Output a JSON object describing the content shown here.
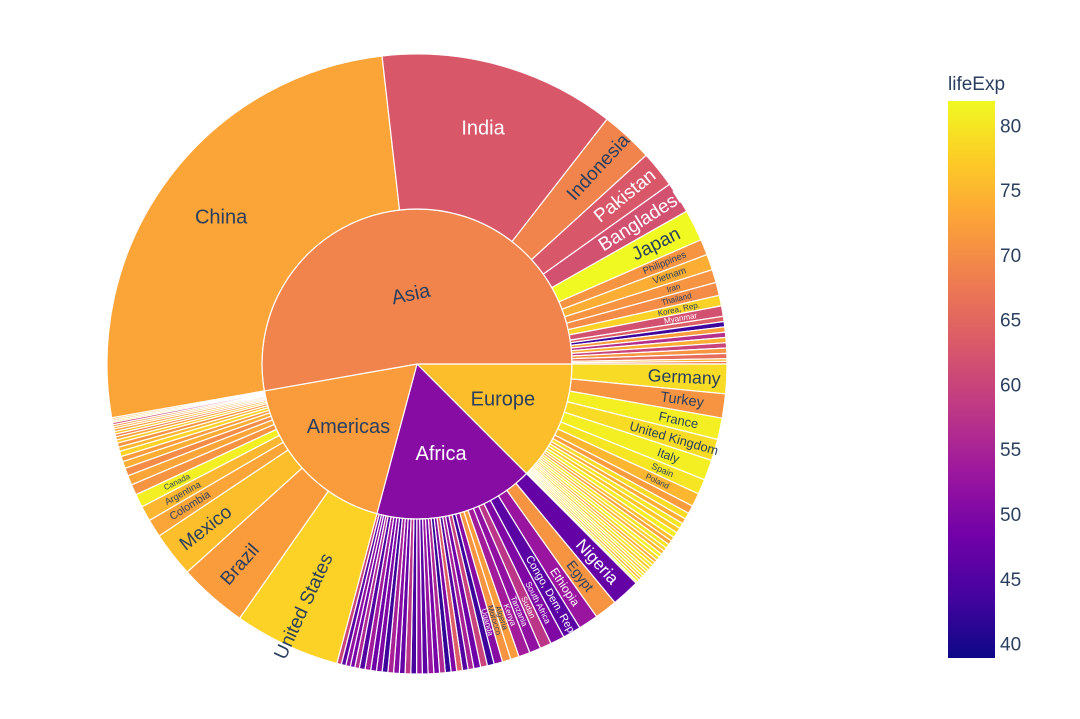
{
  "chart_data": {
    "type": "sunburst",
    "color_variable": "lifeExp",
    "colorscale": [
      "#0d0887",
      "#46039f",
      "#7201a8",
      "#9c179e",
      "#bd3786",
      "#d8576b",
      "#ed7953",
      "#fb9f3a",
      "#fdca26",
      "#f0f921"
    ],
    "color_range": [
      39,
      82
    ],
    "colorbar": {
      "title": "lifeExp",
      "ticks": [
        40,
        45,
        50,
        55,
        60,
        65,
        70,
        75,
        80
      ]
    },
    "inner": [
      {
        "name": "Asia",
        "weight": 190,
        "lifeExp": 69
      },
      {
        "name": "Africa",
        "weight": 60,
        "lifeExp": 51
      },
      {
        "name": "Europe",
        "weight": 45,
        "lifeExp": 76
      },
      {
        "name": "Americas",
        "weight": 65,
        "lifeExp": 72
      }
    ],
    "outer": [
      {
        "parent": "Asia",
        "name": "China",
        "weight": 95,
        "lifeExp": 73
      },
      {
        "parent": "Asia",
        "name": "India",
        "weight": 45,
        "lifeExp": 63
      },
      {
        "parent": "Asia",
        "name": "Indonesia",
        "weight": 10,
        "lifeExp": 69
      },
      {
        "parent": "Asia",
        "name": "Pakistan",
        "weight": 7,
        "lifeExp": 63
      },
      {
        "parent": "Asia",
        "name": "Bangladesh",
        "weight": 6,
        "lifeExp": 62
      },
      {
        "parent": "Asia",
        "name": "Japan",
        "weight": 6,
        "lifeExp": 82
      },
      {
        "parent": "Asia",
        "name": "Philippines",
        "weight": 3,
        "lifeExp": 71
      },
      {
        "parent": "Asia",
        "name": "Vietnam",
        "weight": 3,
        "lifeExp": 74
      },
      {
        "parent": "Asia",
        "name": "Iran",
        "weight": 2.5,
        "lifeExp": 71
      },
      {
        "parent": "Asia",
        "name": "Thailand",
        "weight": 2.5,
        "lifeExp": 70
      },
      {
        "parent": "Asia",
        "name": "Korea, Rep.",
        "weight": 2,
        "lifeExp": 78
      },
      {
        "parent": "Asia",
        "name": "Myanmar",
        "weight": 2,
        "lifeExp": 62
      },
      {
        "parent": "Asia",
        "name": "",
        "weight": 1,
        "lifeExp": 64
      },
      {
        "parent": "Asia",
        "name": "",
        "weight": 1,
        "lifeExp": 43
      },
      {
        "parent": "Asia",
        "name": "",
        "weight": 1,
        "lifeExp": 72
      },
      {
        "parent": "Asia",
        "name": "",
        "weight": 1,
        "lifeExp": 57
      },
      {
        "parent": "Asia",
        "name": "",
        "weight": 1,
        "lifeExp": 74
      },
      {
        "parent": "Asia",
        "name": "",
        "weight": 1,
        "lifeExp": 60
      },
      {
        "parent": "Asia",
        "name": "",
        "weight": 1,
        "lifeExp": 71
      },
      {
        "parent": "Asia",
        "name": "",
        "weight": 1,
        "lifeExp": 66
      },
      {
        "parent": "Asia",
        "name": "",
        "weight": 0.5,
        "lifeExp": 75
      },
      {
        "parent": "Asia",
        "name": "",
        "weight": 0.5,
        "lifeExp": 68
      },
      {
        "parent": "Africa",
        "name": "Nigeria",
        "weight": 5,
        "lifeExp": 47
      },
      {
        "parent": "Africa",
        "name": "Egypt",
        "weight": 4,
        "lifeExp": 71
      },
      {
        "parent": "Africa",
        "name": "Ethiopia",
        "weight": 3.5,
        "lifeExp": 53
      },
      {
        "parent": "Africa",
        "name": "Congo, Dem. Rep.",
        "weight": 3.2,
        "lifeExp": 46
      },
      {
        "parent": "Africa",
        "name": "South Africa",
        "weight": 2.5,
        "lifeExp": 50
      },
      {
        "parent": "Africa",
        "name": "Sudan",
        "weight": 2,
        "lifeExp": 58
      },
      {
        "parent": "Africa",
        "name": "Tanzania",
        "weight": 2,
        "lifeExp": 52
      },
      {
        "parent": "Africa",
        "name": "Kenya",
        "weight": 2,
        "lifeExp": 54
      },
      {
        "parent": "Africa",
        "name": "Algeria",
        "weight": 1.5,
        "lifeExp": 72
      },
      {
        "parent": "Africa",
        "name": "Morocco",
        "weight": 1.5,
        "lifeExp": 71
      },
      {
        "parent": "Africa",
        "name": "Uganda",
        "weight": 1.5,
        "lifeExp": 51
      },
      {
        "parent": "Africa",
        "name": "",
        "weight": 1.2,
        "lifeExp": 43
      },
      {
        "parent": "Africa",
        "name": "",
        "weight": 1.2,
        "lifeExp": 60
      },
      {
        "parent": "Africa",
        "name": "",
        "weight": 1.2,
        "lifeExp": 48
      },
      {
        "parent": "Africa",
        "name": "",
        "weight": 1,
        "lifeExp": 55
      },
      {
        "parent": "Africa",
        "name": "",
        "weight": 1,
        "lifeExp": 45
      },
      {
        "parent": "Africa",
        "name": "",
        "weight": 1,
        "lifeExp": 64
      },
      {
        "parent": "Africa",
        "name": "",
        "weight": 1,
        "lifeExp": 50
      },
      {
        "parent": "Africa",
        "name": "",
        "weight": 1,
        "lifeExp": 42
      },
      {
        "parent": "Africa",
        "name": "",
        "weight": 1,
        "lifeExp": 56
      },
      {
        "parent": "Africa",
        "name": "",
        "weight": 1,
        "lifeExp": 49
      },
      {
        "parent": "Africa",
        "name": "",
        "weight": 1,
        "lifeExp": 53
      },
      {
        "parent": "Africa",
        "name": "",
        "weight": 1,
        "lifeExp": 46
      },
      {
        "parent": "Africa",
        "name": "",
        "weight": 1,
        "lifeExp": 52
      },
      {
        "parent": "Africa",
        "name": "",
        "weight": 1,
        "lifeExp": 44
      },
      {
        "parent": "Africa",
        "name": "",
        "weight": 1,
        "lifeExp": 58
      },
      {
        "parent": "Africa",
        "name": "",
        "weight": 1,
        "lifeExp": 47
      },
      {
        "parent": "Africa",
        "name": "",
        "weight": 1,
        "lifeExp": 51
      },
      {
        "parent": "Africa",
        "name": "",
        "weight": 1,
        "lifeExp": 55
      },
      {
        "parent": "Africa",
        "name": "",
        "weight": 1,
        "lifeExp": 43
      },
      {
        "parent": "Africa",
        "name": "",
        "weight": 1,
        "lifeExp": 50
      },
      {
        "parent": "Africa",
        "name": "",
        "weight": 1,
        "lifeExp": 48
      },
      {
        "parent": "Africa",
        "name": "",
        "weight": 1,
        "lifeExp": 54
      },
      {
        "parent": "Africa",
        "name": "",
        "weight": 1,
        "lifeExp": 45
      },
      {
        "parent": "Africa",
        "name": "",
        "weight": 0.8,
        "lifeExp": 56
      },
      {
        "parent": "Africa",
        "name": "",
        "weight": 0.8,
        "lifeExp": 49
      },
      {
        "parent": "Africa",
        "name": "",
        "weight": 0.8,
        "lifeExp": 52
      },
      {
        "parent": "Africa",
        "name": "",
        "weight": 0.8,
        "lifeExp": 46
      },
      {
        "parent": "Africa",
        "name": "",
        "weight": 0.8,
        "lifeExp": 60
      },
      {
        "parent": "Europe",
        "name": "Germany",
        "weight": 5.5,
        "lifeExp": 79
      },
      {
        "parent": "Europe",
        "name": "Turkey",
        "weight": 4.5,
        "lifeExp": 71
      },
      {
        "parent": "Europe",
        "name": "France",
        "weight": 4,
        "lifeExp": 81
      },
      {
        "parent": "Europe",
        "name": "United Kingdom",
        "weight": 4,
        "lifeExp": 79
      },
      {
        "parent": "Europe",
        "name": "Italy",
        "weight": 3.8,
        "lifeExp": 81
      },
      {
        "parent": "Europe",
        "name": "Spain",
        "weight": 2.8,
        "lifeExp": 80
      },
      {
        "parent": "Europe",
        "name": "Poland",
        "weight": 2.5,
        "lifeExp": 75
      },
      {
        "parent": "Europe",
        "name": "",
        "weight": 1.5,
        "lifeExp": 72
      },
      {
        "parent": "Europe",
        "name": "",
        "weight": 1.2,
        "lifeExp": 79
      },
      {
        "parent": "Europe",
        "name": "",
        "weight": 1,
        "lifeExp": 74
      },
      {
        "parent": "Europe",
        "name": "",
        "weight": 1,
        "lifeExp": 80
      },
      {
        "parent": "Europe",
        "name": "",
        "weight": 1,
        "lifeExp": 77
      },
      {
        "parent": "Europe",
        "name": "",
        "weight": 1,
        "lifeExp": 81
      },
      {
        "parent": "Europe",
        "name": "",
        "weight": 0.8,
        "lifeExp": 76
      },
      {
        "parent": "Europe",
        "name": "",
        "weight": 0.8,
        "lifeExp": 73
      },
      {
        "parent": "Europe",
        "name": "",
        "weight": 0.8,
        "lifeExp": 80
      },
      {
        "parent": "Europe",
        "name": "",
        "weight": 0.7,
        "lifeExp": 78
      },
      {
        "parent": "Europe",
        "name": "",
        "weight": 0.7,
        "lifeExp": 75
      },
      {
        "parent": "Europe",
        "name": "",
        "weight": 0.7,
        "lifeExp": 81
      },
      {
        "parent": "Europe",
        "name": "",
        "weight": 0.7,
        "lifeExp": 79
      },
      {
        "parent": "Europe",
        "name": "",
        "weight": 0.6,
        "lifeExp": 74
      },
      {
        "parent": "Europe",
        "name": "",
        "weight": 0.6,
        "lifeExp": 78
      },
      {
        "parent": "Europe",
        "name": "",
        "weight": 0.6,
        "lifeExp": 80
      },
      {
        "parent": "Europe",
        "name": "",
        "weight": 0.6,
        "lifeExp": 77
      },
      {
        "parent": "Europe",
        "name": "",
        "weight": 0.5,
        "lifeExp": 81
      },
      {
        "parent": "Europe",
        "name": "",
        "weight": 0.5,
        "lifeExp": 76
      },
      {
        "parent": "Europe",
        "name": "",
        "weight": 0.5,
        "lifeExp": 80
      },
      {
        "parent": "Europe",
        "name": "",
        "weight": 0.5,
        "lifeExp": 79
      },
      {
        "parent": "Europe",
        "name": "",
        "weight": 0.5,
        "lifeExp": 75
      },
      {
        "parent": "Europe",
        "name": "",
        "weight": 0.5,
        "lifeExp": 81
      },
      {
        "parent": "Europe",
        "name": "",
        "weight": 0.3,
        "lifeExp": 81
      },
      {
        "parent": "Americas",
        "name": "United States",
        "weight": 20,
        "lifeExp": 78
      },
      {
        "parent": "Americas",
        "name": "Brazil",
        "weight": 13,
        "lifeExp": 72
      },
      {
        "parent": "Americas",
        "name": "Mexico",
        "weight": 8.5,
        "lifeExp": 76
      },
      {
        "parent": "Americas",
        "name": "Colombia",
        "weight": 3.4,
        "lifeExp": 73
      },
      {
        "parent": "Americas",
        "name": "Argentina",
        "weight": 2.9,
        "lifeExp": 75
      },
      {
        "parent": "Americas",
        "name": "Canada",
        "weight": 2.5,
        "lifeExp": 81
      },
      {
        "parent": "Americas",
        "name": "",
        "weight": 2,
        "lifeExp": 71
      },
      {
        "parent": "Americas",
        "name": "",
        "weight": 1.8,
        "lifeExp": 73
      },
      {
        "parent": "Americas",
        "name": "",
        "weight": 1.5,
        "lifeExp": 70
      },
      {
        "parent": "Americas",
        "name": "",
        "weight": 1.3,
        "lifeExp": 74
      },
      {
        "parent": "Americas",
        "name": "",
        "weight": 1,
        "lifeExp": 72
      },
      {
        "parent": "Americas",
        "name": "",
        "weight": 1,
        "lifeExp": 78
      },
      {
        "parent": "Americas",
        "name": "",
        "weight": 0.8,
        "lifeExp": 75
      },
      {
        "parent": "Americas",
        "name": "",
        "weight": 0.8,
        "lifeExp": 71
      },
      {
        "parent": "Americas",
        "name": "",
        "weight": 0.6,
        "lifeExp": 77
      },
      {
        "parent": "Americas",
        "name": "",
        "weight": 0.6,
        "lifeExp": 73
      },
      {
        "parent": "Americas",
        "name": "",
        "weight": 0.5,
        "lifeExp": 69
      },
      {
        "parent": "Americas",
        "name": "",
        "weight": 0.5,
        "lifeExp": 76
      },
      {
        "parent": "Americas",
        "name": "",
        "weight": 0.5,
        "lifeExp": 72
      },
      {
        "parent": "Americas",
        "name": "",
        "weight": 0.4,
        "lifeExp": 74
      },
      {
        "parent": "Americas",
        "name": "",
        "weight": 0.4,
        "lifeExp": 71
      },
      {
        "parent": "Americas",
        "name": "",
        "weight": 0.4,
        "lifeExp": 60
      },
      {
        "parent": "Americas",
        "name": "",
        "weight": 0.3,
        "lifeExp": 78
      },
      {
        "parent": "Americas",
        "name": "",
        "weight": 0.3,
        "lifeExp": 73
      },
      {
        "parent": "Americas",
        "name": "",
        "weight": 0.3,
        "lifeExp": 75
      }
    ]
  }
}
